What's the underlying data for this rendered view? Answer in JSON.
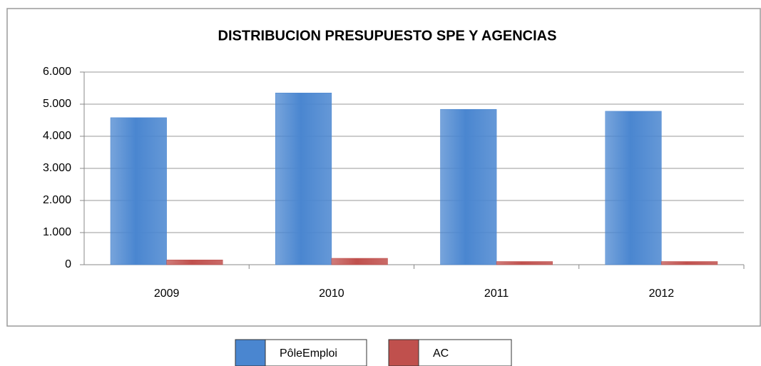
{
  "chart_data": {
    "type": "bar",
    "title": "DISTRIBUCION PRESUPUESTO SPE Y AGENCIAS",
    "categories": [
      "2009",
      "2010",
      "2011",
      "2012"
    ],
    "series": [
      {
        "name": "PôleEmploi",
        "color": "#4a86d0",
        "values": [
          4580,
          5350,
          4840,
          4780
        ]
      },
      {
        "name": "AC",
        "color": "#c0504d",
        "values": [
          150,
          200,
          100,
          100
        ]
      }
    ],
    "ylim": [
      0,
      6000
    ],
    "yticks": [
      0,
      {
        "value": 1000,
        "label": "1.000"
      },
      {
        "value": 2000,
        "label": "2.000"
      },
      {
        "value": 3000,
        "label": "3.000"
      },
      {
        "value": 4000,
        "label": "4.000"
      },
      {
        "value": 5000,
        "label": "5.000"
      },
      {
        "value": 6000,
        "label": "6.000"
      }
    ],
    "grid": true,
    "legend": "bottom"
  }
}
